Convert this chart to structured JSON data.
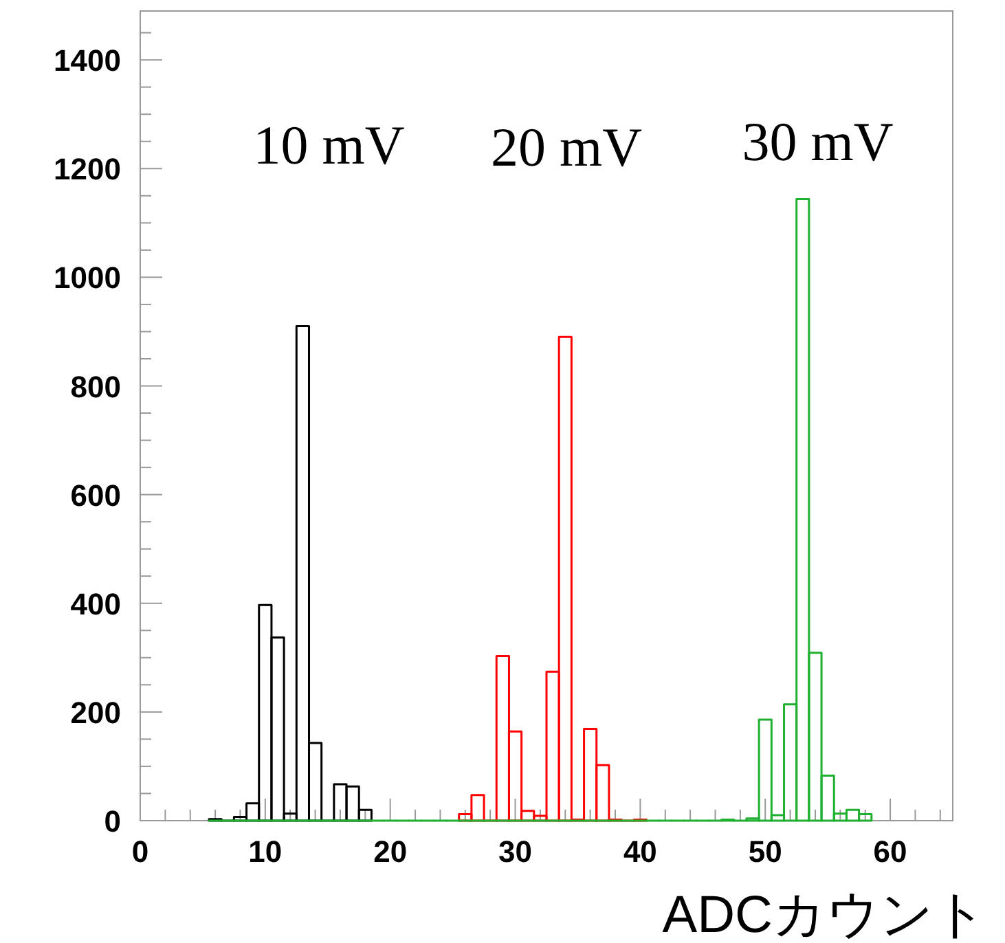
{
  "chart_data": {
    "type": "histogram",
    "xlabel": "ADCカウント",
    "xlim": [
      0,
      65
    ],
    "xticks": [
      0,
      10,
      20,
      30,
      40,
      50,
      60
    ],
    "ylim": [
      0,
      1490
    ],
    "yticks": [
      0,
      200,
      400,
      600,
      800,
      1000,
      1200,
      1400
    ],
    "grid": false,
    "bins": [
      5.5,
      6.5,
      7.5,
      8.5,
      9.5,
      10.5,
      11.5,
      12.5,
      13.5,
      14.5,
      15.5,
      16.5,
      17.5,
      18.5,
      19.5,
      20.5,
      21.5,
      22.5,
      23.5,
      24.5,
      25.5,
      26.5,
      27.5,
      28.5,
      29.5,
      30.5,
      31.5,
      32.5,
      33.5,
      34.5,
      35.5,
      36.5,
      37.5,
      38.5,
      39.5,
      40.5,
      41.5,
      42.5,
      43.5,
      44.5,
      45.5,
      46.5,
      47.5,
      48.5,
      49.5,
      50.5,
      51.5,
      52.5,
      53.5,
      54.5,
      55.5,
      56.5,
      57.5,
      58.5
    ],
    "series": [
      {
        "color": "#000000",
        "values": [
          3,
          0,
          7,
          32,
          397,
          337,
          13,
          910,
          143,
          0,
          67,
          63,
          20,
          null,
          null,
          null,
          null,
          null,
          null,
          null,
          null,
          null,
          null,
          null,
          null,
          null,
          null,
          null,
          null,
          null,
          null,
          null,
          null,
          null,
          null,
          null,
          null,
          null,
          null,
          null,
          null,
          null,
          null,
          null,
          null,
          null,
          null,
          null,
          null,
          null,
          null,
          null,
          null
        ]
      },
      {
        "color": "#ff0000",
        "values": [
          null,
          null,
          null,
          null,
          null,
          null,
          null,
          null,
          null,
          null,
          null,
          null,
          null,
          null,
          null,
          null,
          null,
          null,
          null,
          null,
          12,
          47,
          0,
          303,
          164,
          18,
          9,
          274,
          890,
          2,
          169,
          102,
          2,
          0,
          2,
          null,
          null,
          null,
          null,
          null,
          null,
          null,
          null,
          null,
          null,
          null,
          null,
          null,
          null,
          null,
          null,
          null,
          null
        ]
      },
      {
        "color": "#1fb030",
        "values": [
          0,
          0,
          0,
          0,
          0,
          0,
          0,
          0,
          0,
          0,
          0,
          0,
          0,
          0,
          0,
          0,
          0,
          0,
          0,
          0,
          0,
          0,
          0,
          0,
          0,
          0,
          0,
          0,
          0,
          0,
          0,
          0,
          0,
          0,
          0,
          0,
          0,
          0,
          0,
          0,
          0,
          2,
          0,
          4,
          186,
          10,
          214,
          1144,
          309,
          83,
          13,
          20,
          12
        ]
      }
    ],
    "annotations": [
      "10 mV",
      "20 mV",
      "30 mV"
    ]
  }
}
